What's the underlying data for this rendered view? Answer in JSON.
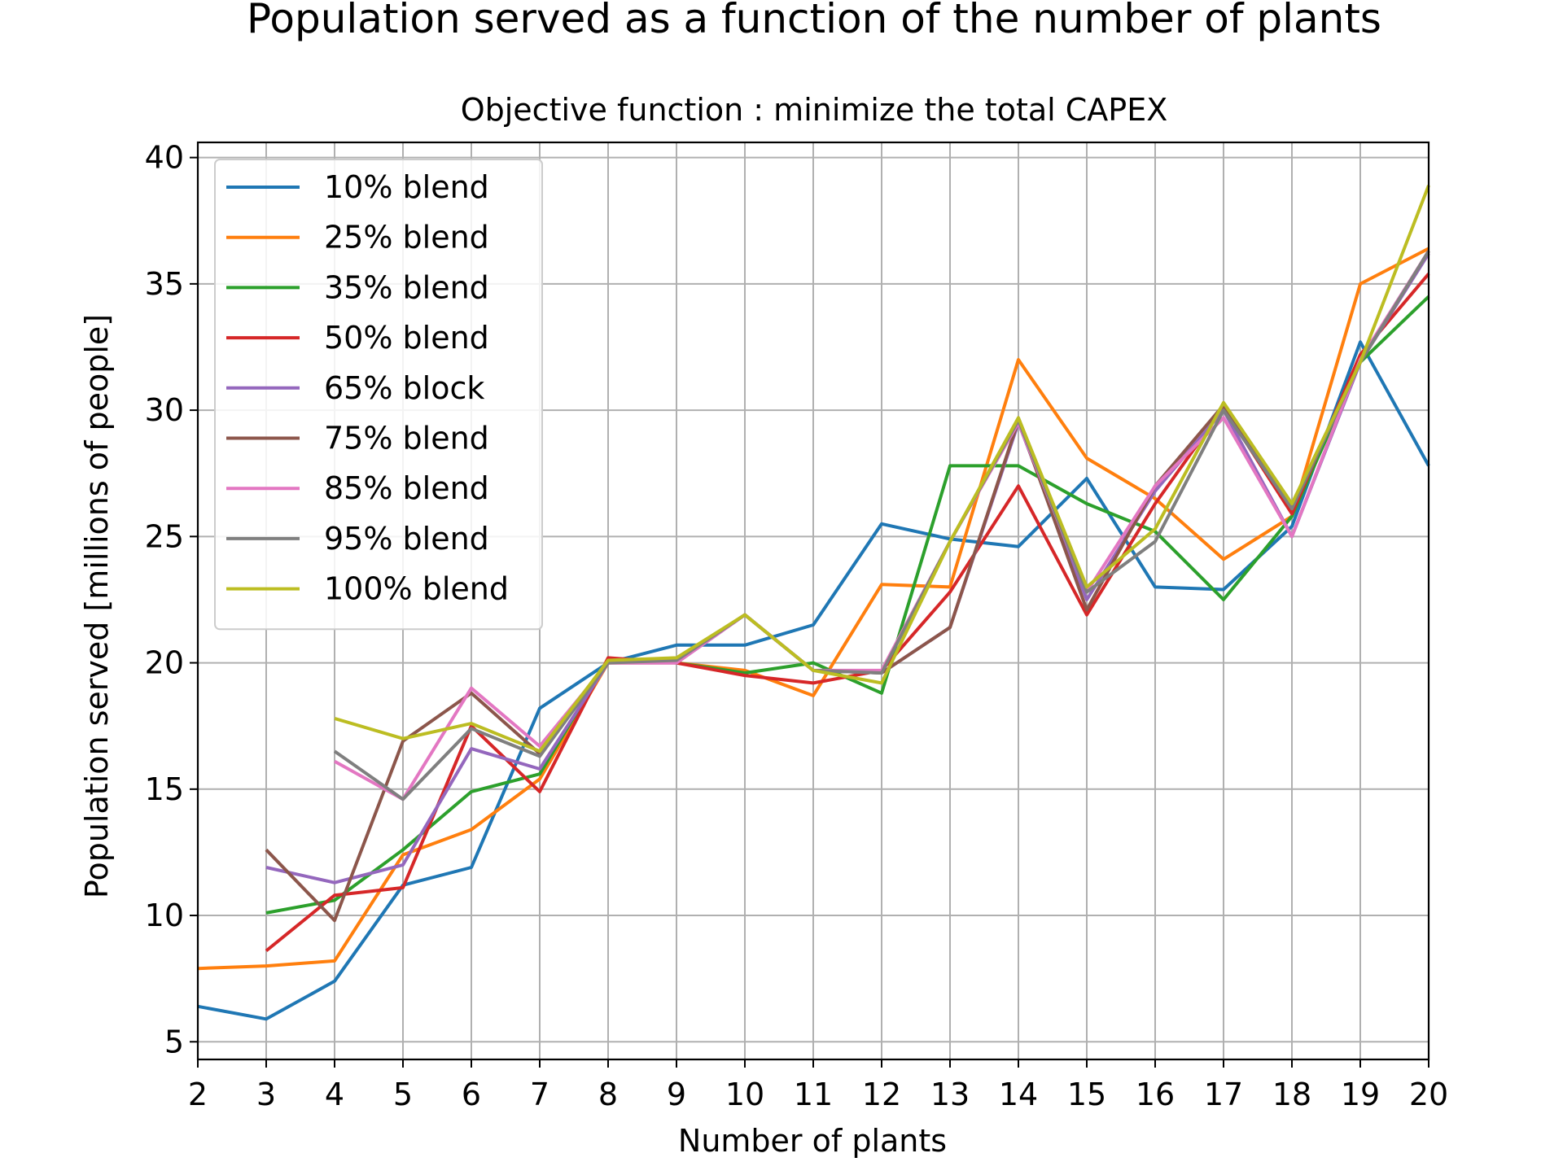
{
  "chart_data": {
    "type": "line",
    "title": "Population served as a function of the number of plants",
    "subtitle": "Objective function : minimize the total CAPEX",
    "xlabel": "Number of plants",
    "ylabel": "Population served [millions of people]",
    "xlim": [
      2,
      20
    ],
    "ylim": [
      4.3,
      40.6
    ],
    "xticks": [
      2,
      3,
      4,
      5,
      6,
      7,
      8,
      9,
      10,
      11,
      12,
      13,
      14,
      15,
      16,
      17,
      18,
      19,
      20
    ],
    "yticks": [
      5,
      10,
      15,
      20,
      25,
      30,
      35,
      40
    ],
    "grid": true,
    "legend_position": "upper-left",
    "x": [
      2,
      3,
      4,
      5,
      6,
      7,
      8,
      9,
      10,
      11,
      12,
      13,
      14,
      15,
      16,
      17,
      18,
      19,
      20
    ],
    "series": [
      {
        "name": "10% blend",
        "color": "#1f77b4",
        "values": [
          6.4,
          5.9,
          7.4,
          11.2,
          11.9,
          18.2,
          20.0,
          20.7,
          20.7,
          21.5,
          25.5,
          24.9,
          24.6,
          27.3,
          23.0,
          22.9,
          25.4,
          32.7,
          27.8
        ]
      },
      {
        "name": "25% blend",
        "color": "#ff7f0e",
        "values": [
          7.9,
          8.0,
          8.2,
          12.4,
          13.4,
          15.4,
          20.0,
          20.0,
          19.7,
          18.7,
          23.1,
          23.0,
          32.0,
          28.1,
          26.5,
          24.1,
          25.8,
          35.0,
          36.4
        ]
      },
      {
        "name": "35% blend",
        "color": "#2ca02c",
        "values": [
          null,
          10.1,
          10.6,
          12.6,
          14.9,
          15.6,
          20.1,
          20.0,
          19.6,
          20.0,
          18.8,
          27.8,
          27.8,
          26.3,
          25.2,
          22.5,
          25.8,
          31.9,
          34.5
        ]
      },
      {
        "name": "50% blend",
        "color": "#d62728",
        "values": [
          null,
          8.6,
          10.8,
          11.1,
          17.5,
          14.9,
          20.2,
          20.0,
          19.5,
          19.2,
          19.7,
          22.8,
          27.0,
          21.9,
          26.3,
          30.1,
          25.9,
          32.2,
          35.4
        ]
      },
      {
        "name": "65% block",
        "color": "#9467bd",
        "values": [
          null,
          11.9,
          11.3,
          12.0,
          16.6,
          15.8,
          20.0,
          20.0,
          21.9,
          19.7,
          19.6,
          21.4,
          29.5,
          22.5,
          26.8,
          30.0,
          25.0,
          31.9,
          36.2
        ]
      },
      {
        "name": "75% blend",
        "color": "#8c564b",
        "values": [
          null,
          12.6,
          9.8,
          16.9,
          18.8,
          16.4,
          20.0,
          20.1,
          21.9,
          19.7,
          19.6,
          21.4,
          29.6,
          22.1,
          27.0,
          30.2,
          26.1,
          31.9,
          36.3
        ]
      },
      {
        "name": "85% blend",
        "color": "#e377c2",
        "values": [
          null,
          null,
          16.1,
          14.6,
          19.0,
          16.7,
          20.0,
          20.0,
          21.9,
          19.7,
          19.7,
          24.8,
          29.5,
          22.8,
          27.0,
          29.7,
          25.0,
          32.0,
          36.3
        ]
      },
      {
        "name": "95% blend",
        "color": "#7f7f7f",
        "values": [
          null,
          null,
          16.5,
          14.6,
          17.4,
          16.3,
          20.0,
          20.1,
          21.9,
          19.7,
          19.6,
          24.8,
          29.6,
          22.8,
          24.8,
          30.0,
          26.1,
          31.9,
          36.3
        ]
      },
      {
        "name": "100% blend",
        "color": "#bcbd22",
        "values": [
          null,
          null,
          17.8,
          17.0,
          17.6,
          16.5,
          20.1,
          20.2,
          21.9,
          19.7,
          19.2,
          24.8,
          29.7,
          23.0,
          25.3,
          30.3,
          26.3,
          31.9,
          38.9
        ]
      }
    ]
  }
}
